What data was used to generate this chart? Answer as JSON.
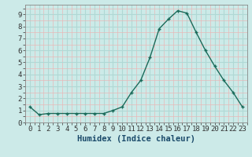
{
  "x": [
    0,
    1,
    2,
    3,
    4,
    5,
    6,
    7,
    8,
    9,
    10,
    11,
    12,
    13,
    14,
    15,
    16,
    17,
    18,
    19,
    20,
    21,
    22,
    23
  ],
  "y": [
    1.3,
    0.65,
    0.75,
    0.75,
    0.75,
    0.75,
    0.75,
    0.75,
    0.75,
    1.0,
    1.3,
    2.5,
    3.5,
    5.4,
    7.8,
    8.6,
    9.3,
    9.1,
    7.5,
    6.0,
    4.7,
    3.5,
    2.5,
    1.3
  ],
  "line_color": "#1a6b5a",
  "marker": "+",
  "markersize": 3.5,
  "linewidth": 1.0,
  "bg_color": "#cceae8",
  "grid_major_color": "#b0d8d5",
  "grid_minor_color": "#e8b8b8",
  "xlabel": "Humidex (Indice chaleur)",
  "xlabel_fontsize": 7.5,
  "xlabel_color": "#1a4a6a",
  "ylabel_ticks": [
    0,
    1,
    2,
    3,
    4,
    5,
    6,
    7,
    8,
    9
  ],
  "xlim": [
    -0.5,
    23.5
  ],
  "ylim": [
    0,
    9.8
  ],
  "tick_fontsize": 6.5,
  "xtick_labels": [
    "0",
    "1",
    "2",
    "3",
    "4",
    "5",
    "6",
    "7",
    "8",
    "9",
    "10",
    "11",
    "12",
    "13",
    "14",
    "15",
    "16",
    "17",
    "18",
    "19",
    "20",
    "21",
    "22",
    "23"
  ]
}
